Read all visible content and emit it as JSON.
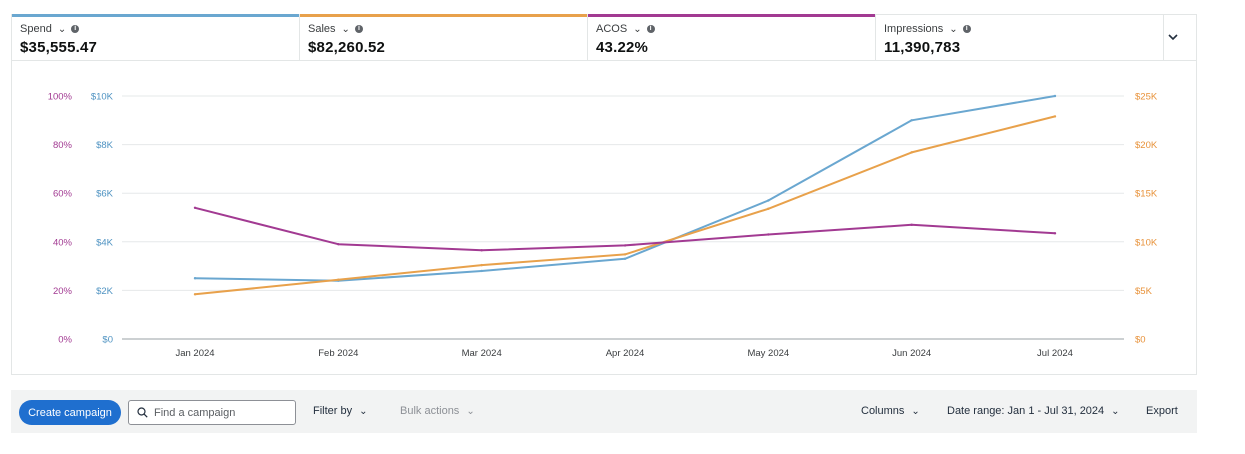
{
  "metrics": [
    {
      "label": "Spend",
      "value": "$35,555.47",
      "color": "#6aa7d0"
    },
    {
      "label": "Sales",
      "value": "$82,260.52",
      "color": "#e8a14b"
    },
    {
      "label": "ACOS",
      "value": "43.22%",
      "color": "#a23a92"
    },
    {
      "label": "Impressions",
      "value": "11,390,783",
      "color": ""
    }
  ],
  "icons": {
    "metric_dropdown": "chevron-down-icon",
    "metric_info": "info-icon",
    "expand": "chevron-down-icon",
    "search": "search-icon"
  },
  "chart_data": {
    "type": "line",
    "categories": [
      "Jan 2024",
      "Feb 2024",
      "Mar 2024",
      "Apr 2024",
      "May 2024",
      "Jun 2024",
      "Jul 2024"
    ],
    "axes": {
      "left_outer": {
        "ticks": [
          "0%",
          "20%",
          "40%",
          "60%",
          "80%",
          "100%"
        ],
        "range": [
          0,
          100
        ],
        "color": "#a23a92"
      },
      "left_inner": {
        "ticks": [
          "$0",
          "$2K",
          "$4K",
          "$6K",
          "$8K",
          "$10K"
        ],
        "range": [
          0,
          10000
        ],
        "color": "#4f93c2"
      },
      "right": {
        "ticks": [
          "$0",
          "$5K",
          "$10K",
          "$15K",
          "$20K",
          "$25K"
        ],
        "range": [
          0,
          25000
        ],
        "color": "#e8923a"
      }
    },
    "grid": true,
    "series": [
      {
        "name": "Spend",
        "axis": "left_inner",
        "color": "#6aa7d0",
        "values": [
          2500,
          2400,
          2800,
          3300,
          5700,
          9000,
          10000
        ]
      },
      {
        "name": "Sales",
        "axis": "right",
        "color": "#e8a14b",
        "values": [
          4600,
          6100,
          7600,
          8700,
          13400,
          19200,
          22900
        ]
      },
      {
        "name": "ACOS",
        "axis": "left_outer",
        "color": "#a23a92",
        "values": [
          54,
          39,
          36.5,
          38.5,
          43,
          47,
          43.5
        ]
      }
    ]
  },
  "toolbar": {
    "create_label": "Create campaign",
    "search_placeholder": "Find a campaign",
    "filter_label": "Filter by",
    "bulk_label": "Bulk actions",
    "columns_label": "Columns",
    "date_range_label": "Date range: Jan 1 - Jul 31, 2024",
    "export_label": "Export"
  }
}
